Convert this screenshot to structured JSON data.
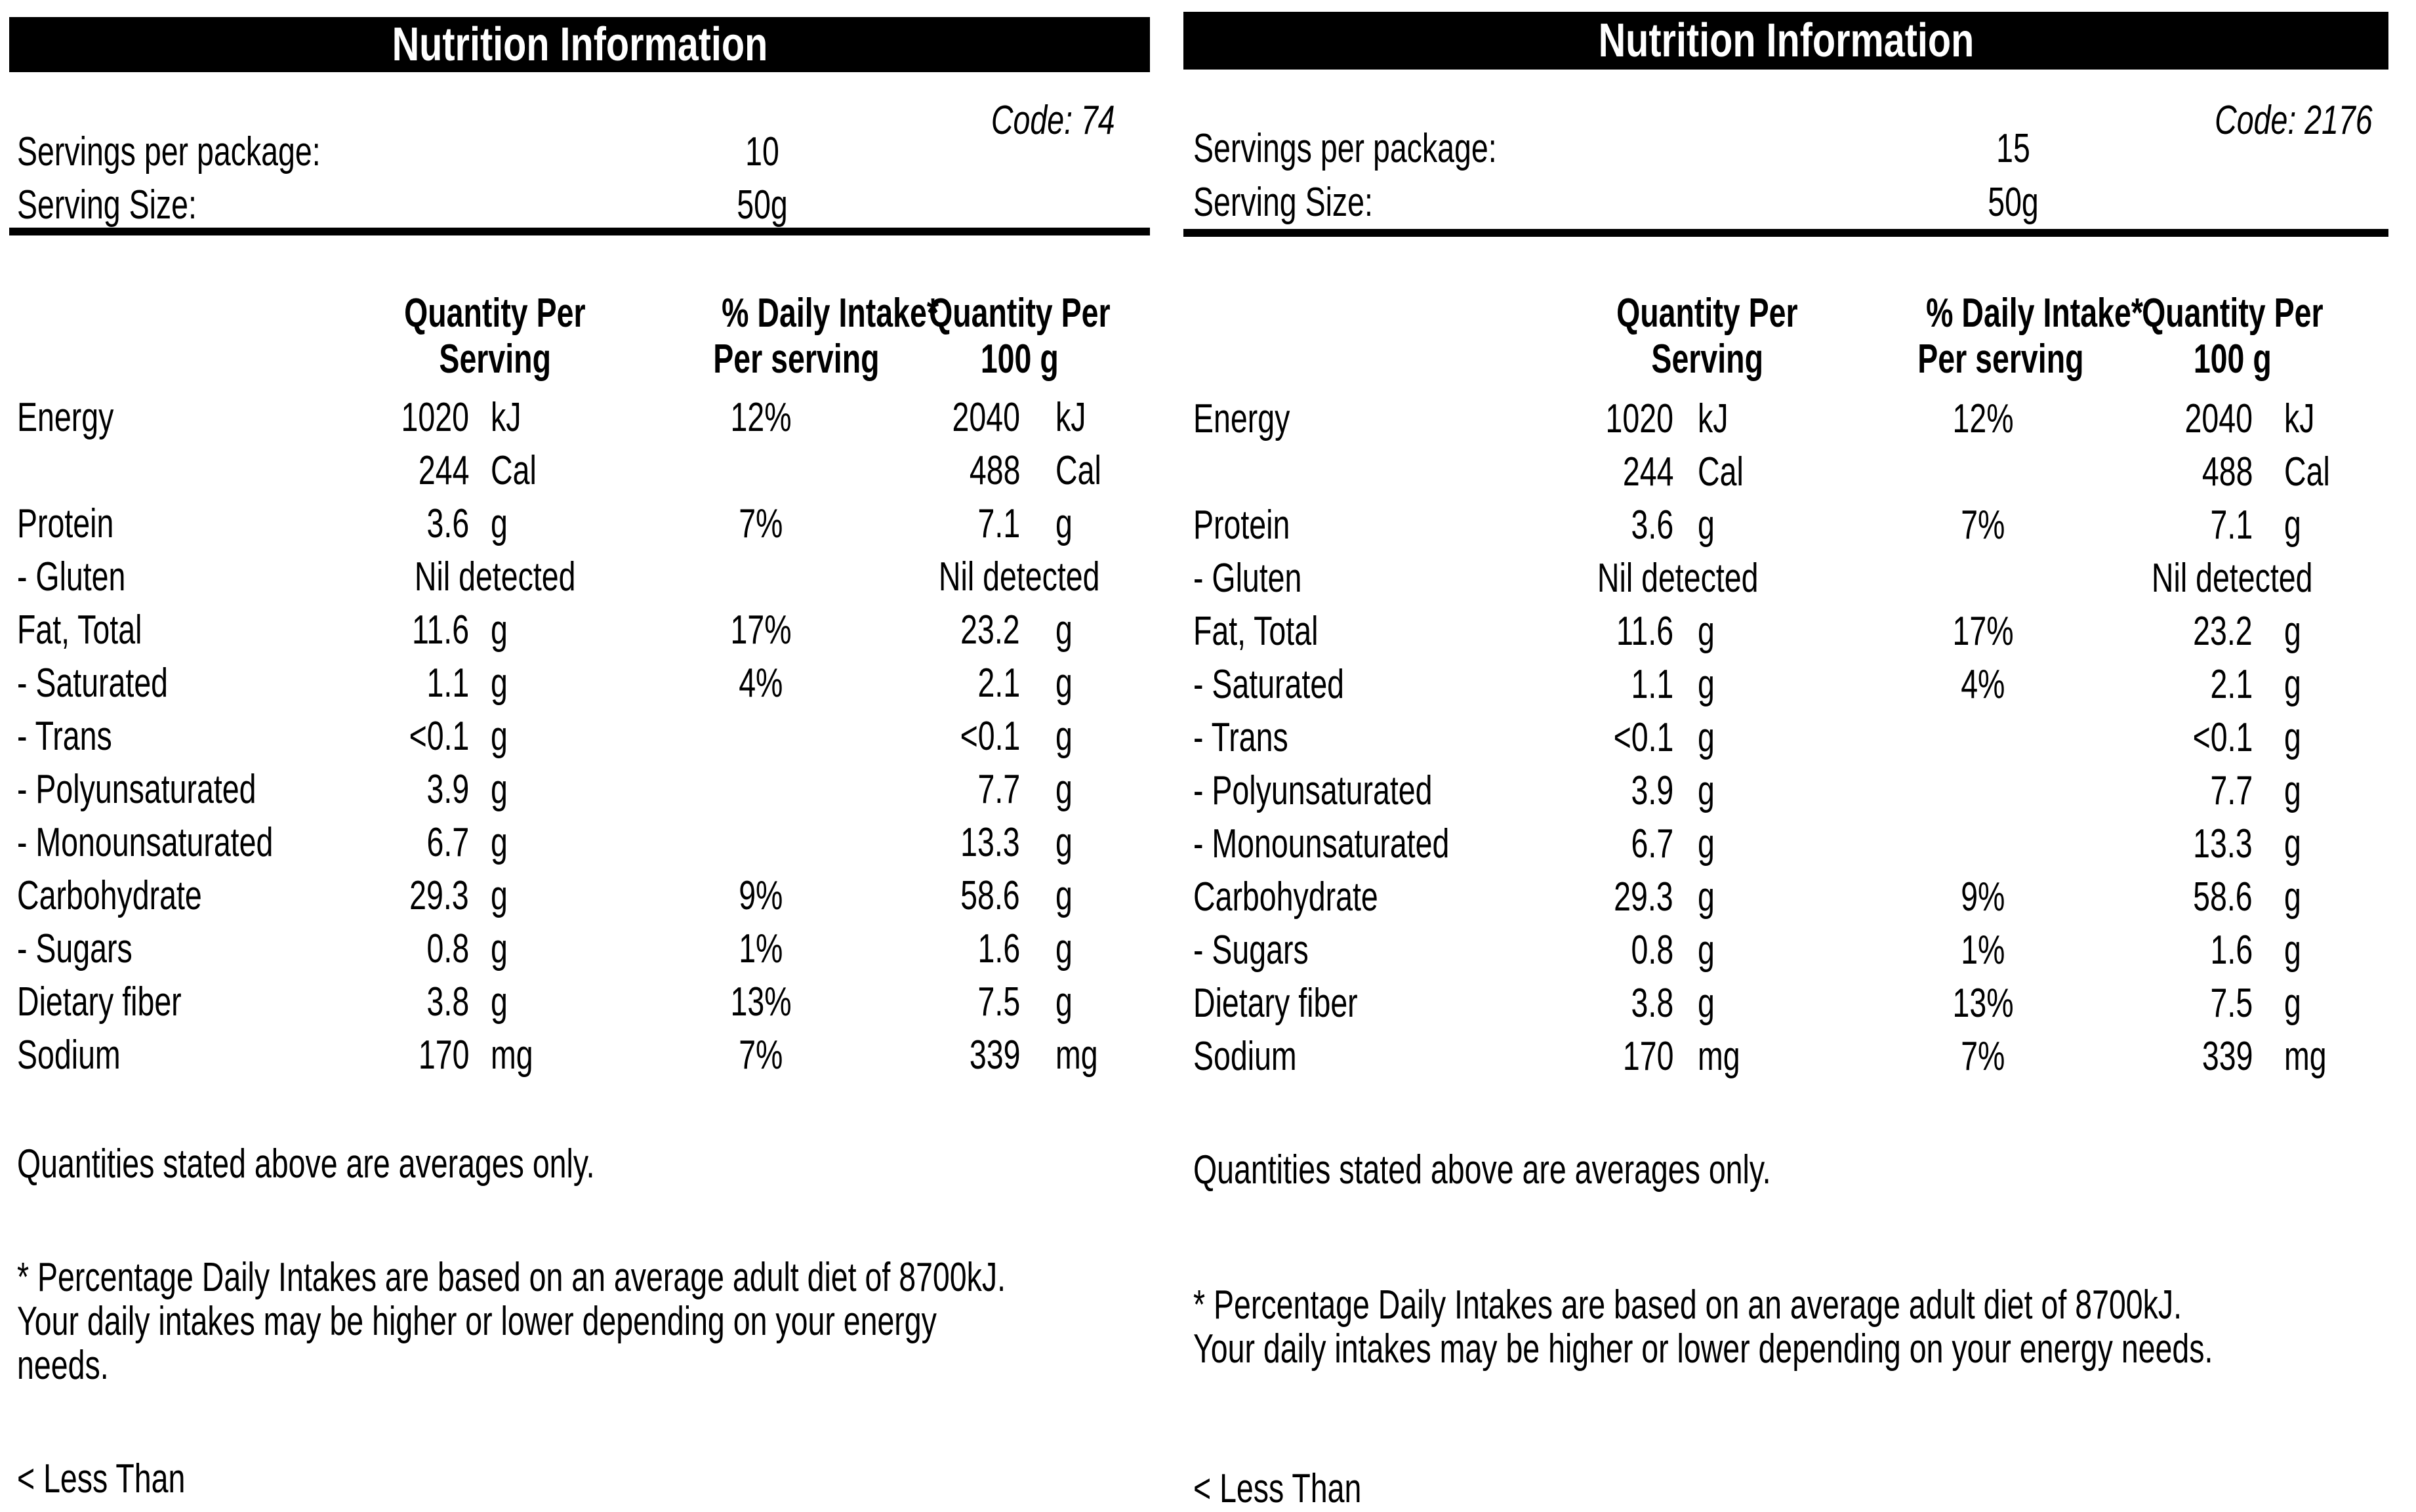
{
  "theme": {
    "background": "#ffffff",
    "text_color": "#000000",
    "bar_background": "#000000",
    "bar_text_color": "#ffffff"
  },
  "panels": [
    {
      "title": "Nutrition Information",
      "code": "Code: 74",
      "servings_label": "Servings per package:",
      "servings_value": "10",
      "serving_size_label": "Serving Size:",
      "serving_size_value": "50g",
      "columns": {
        "qty_serving_l1": "Quantity Per",
        "qty_serving_l2": "Serving",
        "pct_l1": "% Daily Intake*",
        "pct_l2": "Per serving",
        "qty_100_l1": "Quantity Per",
        "qty_100_l2": "100 g"
      },
      "rows": [
        {
          "label": "Energy",
          "qty": "1020",
          "unit": "kJ",
          "pct": "12%",
          "q100": "2040",
          "u100": "kJ"
        },
        {
          "label": "",
          "qty": "244",
          "unit": "Cal",
          "pct": "",
          "q100": "488",
          "u100": "Cal"
        },
        {
          "label": "Protein",
          "qty": "3.6",
          "unit": "g",
          "pct": "7%",
          "q100": "7.1",
          "u100": "g"
        },
        {
          "label": "- Gluten",
          "qty": "Nil detected",
          "unit": "",
          "pct": "",
          "q100": "Nil detected",
          "u100": ""
        },
        {
          "label": "Fat, Total",
          "qty": "11.6",
          "unit": "g",
          "pct": "17%",
          "q100": "23.2",
          "u100": "g"
        },
        {
          "label": "- Saturated",
          "qty": "1.1",
          "unit": "g",
          "pct": "4%",
          "q100": "2.1",
          "u100": "g"
        },
        {
          "label": "- Trans",
          "qty": "<0.1",
          "unit": "g",
          "pct": "",
          "q100": "<0.1",
          "u100": "g"
        },
        {
          "label": "- Polyunsaturated",
          "qty": "3.9",
          "unit": "g",
          "pct": "",
          "q100": "7.7",
          "u100": "g"
        },
        {
          "label": "- Monounsaturated",
          "qty": "6.7",
          "unit": "g",
          "pct": "",
          "q100": "13.3",
          "u100": "g"
        },
        {
          "label": "Carbohydrate",
          "qty": "29.3",
          "unit": "g",
          "pct": "9%",
          "q100": "58.6",
          "u100": "g"
        },
        {
          "label": "- Sugars",
          "qty": "0.8",
          "unit": "g",
          "pct": "1%",
          "q100": "1.6",
          "u100": "g"
        },
        {
          "label": "Dietary fiber",
          "qty": "3.8",
          "unit": "g",
          "pct": "13%",
          "q100": "7.5",
          "u100": "g"
        },
        {
          "label": "Sodium",
          "qty": "170",
          "unit": "mg",
          "pct": "7%",
          "q100": "339",
          "u100": "mg"
        }
      ],
      "averages_note": "Quantities stated above are averages only.",
      "dii_note_lines": [
        "* Percentage Daily Intakes are based on an average adult diet of 8700kJ.",
        "Your daily intakes may be higher or lower depending on your energy",
        "needs."
      ],
      "less_than_note": "< Less Than"
    },
    {
      "title": "Nutrition Information",
      "code": "Code: 2176",
      "servings_label": "Servings per package:",
      "servings_value": "15",
      "serving_size_label": "Serving Size:",
      "serving_size_value": "50g",
      "columns": {
        "qty_serving_l1": "Quantity Per",
        "qty_serving_l2": "Serving",
        "pct_l1": "% Daily Intake*",
        "pct_l2": "Per serving",
        "qty_100_l1": "Quantity Per",
        "qty_100_l2": "100 g"
      },
      "rows": [
        {
          "label": "Energy",
          "qty": "1020",
          "unit": "kJ",
          "pct": "12%",
          "q100": "2040",
          "u100": "kJ"
        },
        {
          "label": "",
          "qty": "244",
          "unit": "Cal",
          "pct": "",
          "q100": "488",
          "u100": "Cal"
        },
        {
          "label": "Protein",
          "qty": "3.6",
          "unit": "g",
          "pct": "7%",
          "q100": "7.1",
          "u100": "g"
        },
        {
          "label": "- Gluten",
          "qty": "Nil detected",
          "unit": "",
          "pct": "",
          "q100": "Nil detected",
          "u100": ""
        },
        {
          "label": "Fat, Total",
          "qty": "11.6",
          "unit": "g",
          "pct": "17%",
          "q100": "23.2",
          "u100": "g"
        },
        {
          "label": "- Saturated",
          "qty": "1.1",
          "unit": "g",
          "pct": "4%",
          "q100": "2.1",
          "u100": "g"
        },
        {
          "label": "- Trans",
          "qty": "<0.1",
          "unit": "g",
          "pct": "",
          "q100": "<0.1",
          "u100": "g"
        },
        {
          "label": "- Polyunsaturated",
          "qty": "3.9",
          "unit": "g",
          "pct": "",
          "q100": "7.7",
          "u100": "g"
        },
        {
          "label": "- Monounsaturated",
          "qty": "6.7",
          "unit": "g",
          "pct": "",
          "q100": "13.3",
          "u100": "g"
        },
        {
          "label": "Carbohydrate",
          "qty": "29.3",
          "unit": "g",
          "pct": "9%",
          "q100": "58.6",
          "u100": "g"
        },
        {
          "label": "- Sugars",
          "qty": "0.8",
          "unit": "g",
          "pct": "1%",
          "q100": "1.6",
          "u100": "g"
        },
        {
          "label": "Dietary fiber",
          "qty": "3.8",
          "unit": "g",
          "pct": "13%",
          "q100": "7.5",
          "u100": "g"
        },
        {
          "label": "Sodium",
          "qty": "170",
          "unit": "mg",
          "pct": "7%",
          "q100": "339",
          "u100": "mg"
        }
      ],
      "averages_note": "Quantities stated above are averages only.",
      "dii_note_lines": [
        "* Percentage Daily Intakes are based on an average adult diet of 8700kJ.",
        "Your daily intakes may be higher or lower depending on your energy needs."
      ],
      "less_than_note": "< Less Than"
    }
  ]
}
